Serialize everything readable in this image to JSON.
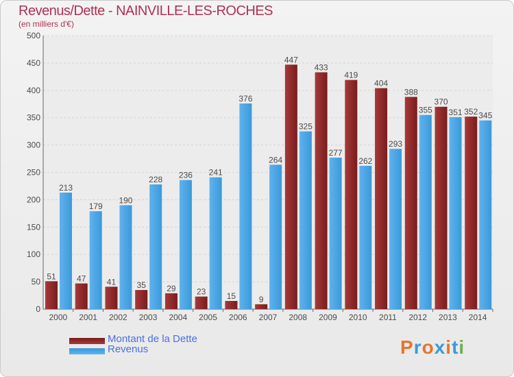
{
  "title": "Revenus/Dette - NAINVILLE-LES-ROCHES",
  "subtitle": "(en milliers d'€)",
  "legend": {
    "debt_label": "Montant de la Dette",
    "revenue_label": "Revenus"
  },
  "logo": {
    "text": "Proxiti",
    "colors": [
      "#e8742a",
      "#3a9ad9",
      "#e8742a",
      "#3a9ad9",
      "#e8742a",
      "#3a9ad9",
      "#6ab04c"
    ]
  },
  "colors": {
    "debt": "#7a1c1c",
    "debt_light": "#a63a3a",
    "revenue": "#3a9ad9",
    "revenue_light": "#5fb2ee",
    "label": "#4a4a4a"
  },
  "chart_data": {
    "type": "bar",
    "categories": [
      "2000",
      "2001",
      "2002",
      "2003",
      "2004",
      "2005",
      "2006",
      "2007",
      "2008",
      "2009",
      "2010",
      "2011",
      "2012",
      "2013",
      "2014"
    ],
    "series": [
      {
        "name": "Montant de la Dette",
        "values": [
          51,
          47,
          41,
          35,
          29,
          23,
          15,
          9,
          447,
          433,
          419,
          404,
          388,
          370,
          352
        ]
      },
      {
        "name": "Revenus",
        "values": [
          213,
          179,
          190,
          228,
          236,
          241,
          376,
          264,
          325,
          277,
          262,
          293,
          355,
          351,
          345
        ]
      }
    ],
    "ylim": [
      0,
      500
    ],
    "yticks": [
      0,
      50,
      100,
      150,
      200,
      250,
      300,
      350,
      400,
      450,
      500
    ],
    "grid": true,
    "legend_position": "bottom-left"
  }
}
